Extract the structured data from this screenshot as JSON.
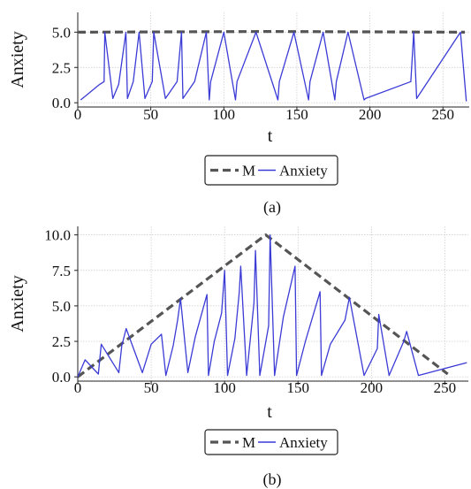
{
  "chart_data": [
    {
      "type": "line",
      "caption": "(a)",
      "xlabel": "t",
      "ylabel": "Anxiety",
      "xlim": [
        0,
        268
      ],
      "ylim": [
        -0.3,
        6.4
      ],
      "xticks": [
        "0",
        "50",
        "100",
        "150",
        "200",
        "250"
      ],
      "yticks": [
        "0.0",
        "2.5",
        "5.0"
      ],
      "grid": true,
      "legend": {
        "placement": "bottom-center",
        "entries": [
          "M",
          "Anxiety"
        ]
      },
      "series": [
        {
          "name": "M",
          "style": "dashed",
          "color": "#555555",
          "x": [
            0,
            130,
            265
          ],
          "y": [
            5.0,
            5.05,
            5.0
          ]
        },
        {
          "name": "Anxiety",
          "style": "solid",
          "color": "#3b3bd6",
          "x": [
            2,
            15,
            18,
            18.5,
            24,
            28,
            33,
            34,
            38,
            42,
            46,
            51,
            52,
            60,
            68,
            71,
            72,
            80,
            88,
            90,
            91,
            100,
            108,
            109,
            122,
            137,
            138,
            148,
            158,
            159,
            168,
            176,
            177,
            185,
            196,
            197,
            228,
            230,
            232,
            262,
            266
          ],
          "y": [
            0.2,
            1.3,
            1.5,
            5.0,
            0.3,
            1.3,
            5.0,
            0.3,
            1.5,
            5.0,
            0.3,
            1.5,
            5.0,
            0.3,
            1.5,
            5.0,
            0.3,
            1.5,
            5.0,
            0.2,
            1.5,
            5.0,
            0.2,
            1.5,
            5.0,
            0.2,
            1.5,
            5.0,
            0.2,
            1.5,
            5.0,
            0.2,
            1.5,
            5.0,
            0.2,
            0.3,
            1.5,
            5.0,
            0.3,
            5.0,
            0.1
          ]
        }
      ]
    },
    {
      "type": "line",
      "caption": "(b)",
      "xlabel": "t",
      "ylabel": "Anxiety",
      "xlim": [
        0,
        266
      ],
      "ylim": [
        -0.3,
        10.6
      ],
      "xticks": [
        "0",
        "50",
        "100",
        "150",
        "200",
        "250"
      ],
      "yticks": [
        "0.0",
        "2.5",
        "5.0",
        "7.5",
        "10.0"
      ],
      "grid": true,
      "legend": {
        "placement": "bottom-center",
        "entries": [
          "M",
          "Anxiety"
        ]
      },
      "series": [
        {
          "name": "M",
          "style": "dashed",
          "color": "#555555",
          "x": [
            0,
            128,
            252
          ],
          "y": [
            0.0,
            10.0,
            0.2
          ]
        },
        {
          "name": "Anxiety",
          "style": "solid",
          "color": "#3b3bd6",
          "x": [
            0,
            5,
            14,
            16,
            28,
            30,
            33,
            44,
            50,
            57,
            60,
            65,
            68,
            70,
            75,
            80,
            88,
            89,
            93,
            98,
            100,
            102,
            107,
            110,
            111,
            115,
            120,
            121,
            124,
            130,
            131,
            134,
            140,
            148,
            149,
            155,
            165,
            166,
            172,
            182,
            185,
            195,
            204,
            205,
            212,
            222,
            224,
            232,
            265
          ],
          "y": [
            0.0,
            1.2,
            0.2,
            2.3,
            0.3,
            2.2,
            3.4,
            0.3,
            2.3,
            3.0,
            0.1,
            2.2,
            4.0,
            5.5,
            0.3,
            2.8,
            5.8,
            0.1,
            2.5,
            4.5,
            7.5,
            0.1,
            2.7,
            6.0,
            7.8,
            0.1,
            5.2,
            8.9,
            0.1,
            3.6,
            10.0,
            0.1,
            4.2,
            7.8,
            0.1,
            2.5,
            6.0,
            0.1,
            2.3,
            4.0,
            5.6,
            0.1,
            2.0,
            4.4,
            0.1,
            2.5,
            3.2,
            0.1,
            1.0
          ]
        }
      ]
    }
  ]
}
